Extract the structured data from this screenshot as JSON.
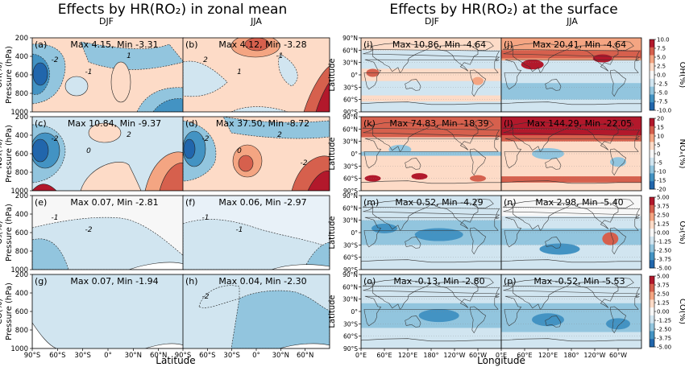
{
  "figure": {
    "left_title": "Effects by  HR(RO₂)  in zonal mean",
    "right_title": "Effects by HR(RO₂) at the surface",
    "season_labels": [
      "DJF",
      "JJA"
    ],
    "left_xlabel": "Latitude",
    "right_xlabel": "Longitude",
    "left_ylabel": "Pressure (hPa)",
    "right_ylabel": "Latitude",
    "row_species": [
      "OH(%)",
      "NOₓ(%)",
      "O₃(%)",
      "CO(%)"
    ],
    "colors": {
      "deep_red": "#b2182b",
      "red": "#d6604d",
      "pink": "#f4a582",
      "light_pink": "#fddbc7",
      "near_white": "#f7f7f7",
      "light_blue": "#d1e5f0",
      "sky_blue": "#92c5de",
      "blue": "#4393c3",
      "deep_blue": "#2166ac"
    }
  },
  "chart_data": [
    {
      "panel": "a",
      "type": "heatmap",
      "variable": "OH(%)",
      "view": "zonal mean",
      "season": "DJF",
      "stats": "Max 4.15, Min -3.31",
      "max": 4.15,
      "min": -3.31,
      "ylabel": "Pressure (hPa)",
      "yticks": [
        200,
        400,
        600,
        800,
        1000
      ],
      "xticks": [],
      "contour_labels": [
        "-2",
        "-1",
        "1"
      ]
    },
    {
      "panel": "b",
      "type": "heatmap",
      "variable": "OH(%)",
      "view": "zonal mean",
      "season": "JJA",
      "stats": "Max 4.12, Min -3.28",
      "max": 4.12,
      "min": -3.28,
      "yticks": [],
      "xticks": [],
      "contour_labels": [
        "2",
        "1",
        "-1"
      ]
    },
    {
      "panel": "c",
      "type": "heatmap",
      "variable": "NOₓ(%)",
      "view": "zonal mean",
      "season": "DJF",
      "stats": "Max 10.84, Min -9.37",
      "max": 10.84,
      "min": -9.37,
      "ylabel": "Pressure (hPa)",
      "yticks": [
        200,
        400,
        600,
        800,
        1000
      ],
      "xticks": [],
      "contour_labels": [
        "-2",
        "0",
        "2"
      ]
    },
    {
      "panel": "d",
      "type": "heatmap",
      "variable": "NOₓ(%)",
      "view": "zonal mean",
      "season": "JJA",
      "stats": "Max 37.50, Min -8.72",
      "max": 37.5,
      "min": -8.72,
      "yticks": [],
      "xticks": [],
      "contour_labels": [
        "-2",
        "0",
        "2",
        "-2"
      ]
    },
    {
      "panel": "e",
      "type": "heatmap",
      "variable": "O₃(%)",
      "view": "zonal mean",
      "season": "DJF",
      "stats": "Max 0.07, Min -2.81",
      "max": 0.07,
      "min": -2.81,
      "ylabel": "Pressure (hPa)",
      "yticks": [
        200,
        400,
        600,
        800,
        1000
      ],
      "xticks": [],
      "contour_labels": [
        "-1",
        "-2"
      ]
    },
    {
      "panel": "f",
      "type": "heatmap",
      "variable": "O₃(%)",
      "view": "zonal mean",
      "season": "JJA",
      "stats": "Max 0.06, Min -2.97",
      "max": 0.06,
      "min": -2.97,
      "yticks": [],
      "xticks": [],
      "contour_labels": [
        "-1",
        "-1"
      ]
    },
    {
      "panel": "g",
      "type": "heatmap",
      "variable": "CO(%)",
      "view": "zonal mean",
      "season": "DJF",
      "stats": "Max 0.07, Min -1.94",
      "max": 0.07,
      "min": -1.94,
      "ylabel": "Pressure (hPa)",
      "yticks": [
        200,
        400,
        600,
        800,
        1000
      ],
      "xlabel": "Latitude",
      "xticks": [
        "90°S",
        "60°S",
        "30°S",
        "0°",
        "30°N",
        "60°N"
      ],
      "contour_labels": []
    },
    {
      "panel": "h",
      "type": "heatmap",
      "variable": "CO(%)",
      "view": "zonal mean",
      "season": "JJA",
      "stats": "Max 0.04, Min -2.30",
      "max": 0.04,
      "min": -2.3,
      "yticks": [],
      "xlabel": "Latitude",
      "xticks": [
        "90°S",
        "60°S",
        "30°S",
        "0°",
        "30°N",
        "60°N"
      ],
      "contour_labels": [
        "-2"
      ]
    },
    {
      "panel": "i",
      "type": "heatmap",
      "variable": "OH(%)",
      "view": "surface",
      "season": "DJF",
      "stats": "Max 10.86, Min -4.64",
      "max": 10.86,
      "min": -4.64,
      "ylabel": "Latitude",
      "yticks": [
        "90°N",
        "60°N",
        "30°N",
        "0°",
        "30°S",
        "60°S",
        "90°S"
      ]
    },
    {
      "panel": "j",
      "type": "heatmap",
      "variable": "OH(%)",
      "view": "surface",
      "season": "JJA",
      "stats": "Max 20.41, Min -4.64",
      "max": 20.41,
      "min": -4.64,
      "colorbar_label": "OH(%)",
      "colorbar_ticks": [
        "10.0",
        "7.5",
        "5.0",
        "2.5",
        "0.0",
        "-2.5",
        "-5.0",
        "-7.5",
        "-10.0"
      ]
    },
    {
      "panel": "k",
      "type": "heatmap",
      "variable": "NOₓ(%)",
      "view": "surface",
      "season": "DJF",
      "stats": "Max 74.83, Min -18.39",
      "max": 74.83,
      "min": -18.39,
      "ylabel": "Latitude",
      "yticks": [
        "90°N",
        "60°N",
        "30°N",
        "0°",
        "30°S",
        "60°S",
        "90°S"
      ]
    },
    {
      "panel": "l",
      "type": "heatmap",
      "variable": "NOₓ(%)",
      "view": "surface",
      "season": "JJA",
      "stats": "Max 144.29, Min -22.05",
      "max": 144.29,
      "min": -22.05,
      "colorbar_label": "NOₓ(%)",
      "colorbar_ticks": [
        "20",
        "15",
        "10",
        "5",
        "0",
        "-5",
        "-10",
        "-15",
        "-20"
      ]
    },
    {
      "panel": "m",
      "type": "heatmap",
      "variable": "O₃(%)",
      "view": "surface",
      "season": "DJF",
      "stats": "Max 0.52, Min -4.29",
      "max": 0.52,
      "min": -4.29,
      "ylabel": "Latitude",
      "yticks": [
        "90°N",
        "60°N",
        "30°N",
        "0°",
        "30°S",
        "60°S",
        "90°S"
      ]
    },
    {
      "panel": "n",
      "type": "heatmap",
      "variable": "O₃(%)",
      "view": "surface",
      "season": "JJA",
      "stats": "Max 2.98, Min -5.40",
      "max": 2.98,
      "min": -5.4,
      "colorbar_label": "O₃(%)",
      "colorbar_ticks": [
        "5.00",
        "3.75",
        "2.50",
        "1.25",
        "0.00",
        "-1.25",
        "-2.50",
        "-3.75",
        "-5.00"
      ]
    },
    {
      "panel": "o",
      "type": "heatmap",
      "variable": "CO(%)",
      "view": "surface",
      "season": "DJF",
      "stats": "Max -0.13, Min -2.80",
      "max": -0.13,
      "min": -2.8,
      "ylabel": "Latitude",
      "yticks": [
        "90°N",
        "60°N",
        "30°N",
        "0°",
        "30°S",
        "60°S",
        "90°S"
      ],
      "xlabel": "Longitude",
      "xticks": [
        "0°E",
        "60°E",
        "120°E",
        "180°",
        "120°W",
        "60°W"
      ]
    },
    {
      "panel": "p",
      "type": "heatmap",
      "variable": "CO(%)",
      "view": "surface",
      "season": "JJA",
      "stats": "Max -0.52, Min -5.53",
      "max": -0.52,
      "min": -5.53,
      "xlabel": "Longitude",
      "xticks": [
        "0°E",
        "60°E",
        "120°E",
        "180°",
        "120°W",
        "60°W"
      ],
      "colorbar_label": "CO(%)",
      "colorbar_ticks": [
        "5.00",
        "3.75",
        "2.50",
        "1.25",
        "0.00",
        "-1.25",
        "-2.50",
        "-3.75",
        "-5.00"
      ]
    }
  ]
}
